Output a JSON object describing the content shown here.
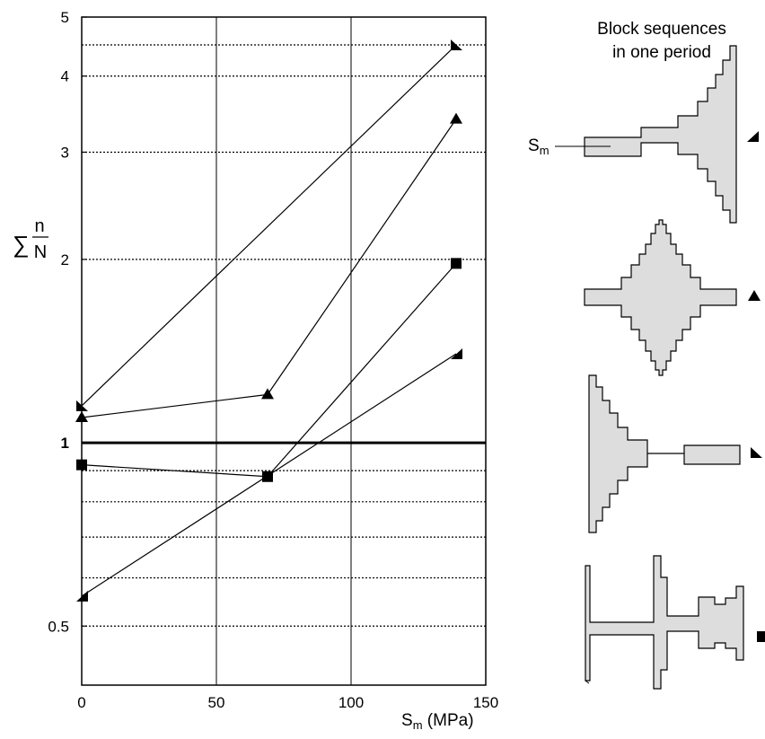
{
  "chart_data": {
    "type": "line",
    "title": "",
    "xlabel": "S",
    "xlabel_sub": "m",
    "xlabel_unit": " (MPa)",
    "ylabel_symbol": "∑",
    "ylabel_num": "n",
    "ylabel_den": "N",
    "y_scale": "log",
    "xlim": [
      0,
      150
    ],
    "ylim": [
      0.4,
      5
    ],
    "x_ticks": [
      {
        "value": 0,
        "label": "0"
      },
      {
        "value": 50,
        "label": "50"
      },
      {
        "value": 100,
        "label": "100"
      },
      {
        "value": 150,
        "label": "150"
      }
    ],
    "y_ticks": [
      {
        "value": 0.5,
        "label": "0.5",
        "bold": false
      },
      {
        "value": 1,
        "label": "1",
        "bold": true
      },
      {
        "value": 2,
        "label": "2",
        "bold": false
      },
      {
        "value": 3,
        "label": "3",
        "bold": false
      },
      {
        "value": 4,
        "label": "4",
        "bold": false
      },
      {
        "value": 5,
        "label": "5",
        "bold": false
      }
    ],
    "reference_line": 1,
    "vertical_grid": [
      50,
      100
    ],
    "horizontal_dotted_grid": [
      0.5,
      0.6,
      0.7,
      0.8,
      0.9,
      2,
      3,
      4,
      4.5
    ],
    "series": [
      {
        "marker": "tri-right",
        "points": [
          [
            0,
            1.15
          ],
          [
            139,
            4.5
          ]
        ]
      },
      {
        "marker": "tri-up",
        "points": [
          [
            0,
            1.1
          ],
          [
            69,
            1.2
          ],
          [
            139,
            3.4
          ]
        ]
      },
      {
        "marker": "square",
        "points": [
          [
            0,
            0.92
          ],
          [
            69,
            0.88
          ],
          [
            139,
            1.97
          ]
        ]
      },
      {
        "marker": "tri-left",
        "points": [
          [
            0,
            0.56
          ],
          [
            139,
            1.4
          ]
        ]
      }
    ],
    "annotations": {
      "panel_title_line1": "Block sequences",
      "panel_title_line2": "in one period",
      "sm_label": "S",
      "sm_label_sub": "m"
    }
  }
}
